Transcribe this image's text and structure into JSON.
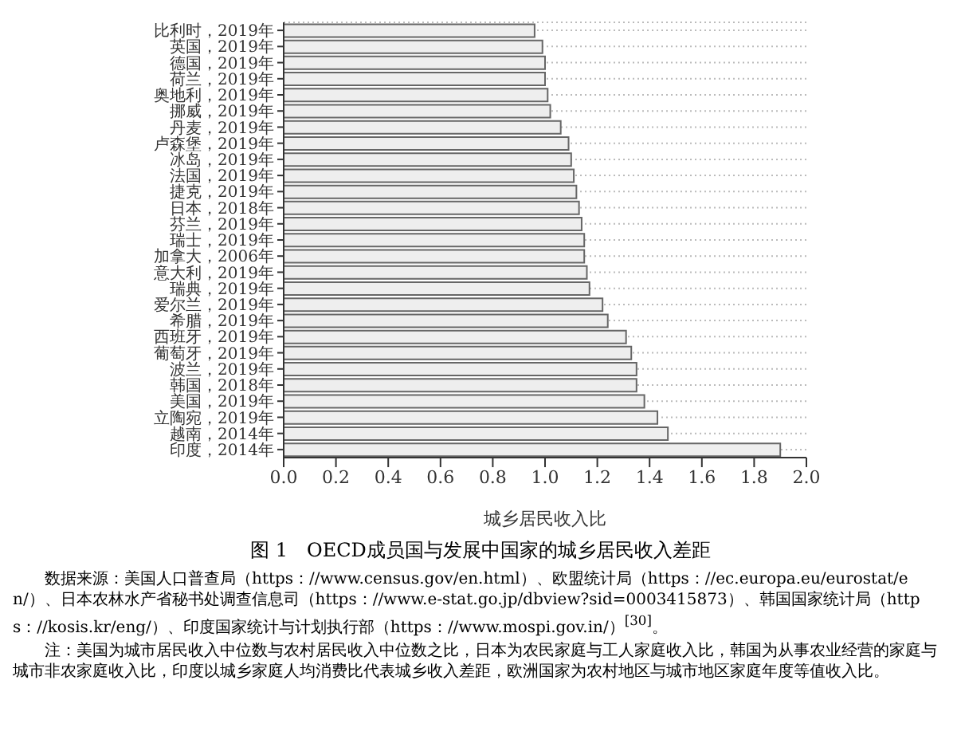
{
  "chart_data": {
    "type": "bar",
    "orientation": "horizontal",
    "title": "图 1　OECD成员国与发展中国家的城乡居民收入差距",
    "xlabel": "城乡居民收入比",
    "categories": [
      "比利时，2019年",
      "英国，2019年",
      "德国，2019年",
      "荷兰，2019年",
      "奥地利，2019年",
      "挪威，2019年",
      "丹麦，2019年",
      "卢森堡，2019年",
      "冰岛，2019年",
      "法国，2019年",
      "捷克，2019年",
      "日本，2018年",
      "芬兰，2019年",
      "瑞士，2019年",
      "加拿大，2006年",
      "意大利，2019年",
      "瑞典，2019年",
      "爱尔兰，2019年",
      "希腊，2019年",
      "西班牙，2019年",
      "葡萄牙，2019年",
      "波兰，2019年",
      "韩国，2018年",
      "美国，2019年",
      "立陶宛，2019年",
      "越南，2014年",
      "印度，2014年"
    ],
    "values": [
      0.96,
      0.99,
      1.0,
      1.0,
      1.01,
      1.02,
      1.06,
      1.09,
      1.1,
      1.11,
      1.12,
      1.13,
      1.14,
      1.15,
      1.15,
      1.16,
      1.17,
      1.22,
      1.24,
      1.31,
      1.33,
      1.35,
      1.35,
      1.38,
      1.43,
      1.47,
      1.9
    ],
    "color": "#eeeeee",
    "xlim": [
      0,
      2
    ],
    "xticks": [
      {
        "value": 0,
        "label": "0.0"
      },
      {
        "value": 0.2,
        "label": "0.2"
      },
      {
        "value": 0.4,
        "label": "0.4"
      },
      {
        "value": 0.6,
        "label": "0.6"
      },
      {
        "value": 0.8,
        "label": "0.8"
      },
      {
        "value": 1,
        "label": "1.0"
      },
      {
        "value": 1.2,
        "label": "1.2"
      },
      {
        "value": 1.4,
        "label": "1.4"
      },
      {
        "value": 1.6,
        "label": "1.6"
      },
      {
        "value": 1.8,
        "label": "1.8"
      },
      {
        "value": 2,
        "label": "2.0"
      }
    ],
    "grid": "y",
    "legend": false,
    "annotations": [
      "数据来源：美国人口普查局（https：//www.census.gov/en.html）、欧盟统计局（https：//ec.europa.eu/eurostat/en/）、日本农林水产省秘书处调查信息司（https：//www.e-stat.go.jp/dbview?sid=0003415873）、韩国国家统计局（https：//kosis.kr/eng/）、印度国家统计与计划执行部（https：//www.mospi.gov.in/）$^{[30]}$。",
      "注：美国为城市居民收入中位数与农村居民收入中位数之比，日本为农民家庭与工人家庭收入比，韩国为从事农业经营的家庭与城市非农家庭收入比，印度以城乡家庭人均消费比代表城乡收入差距，欧洲国家为农村地区与城市地区家庭年度等值收入比。"
    ]
  }
}
